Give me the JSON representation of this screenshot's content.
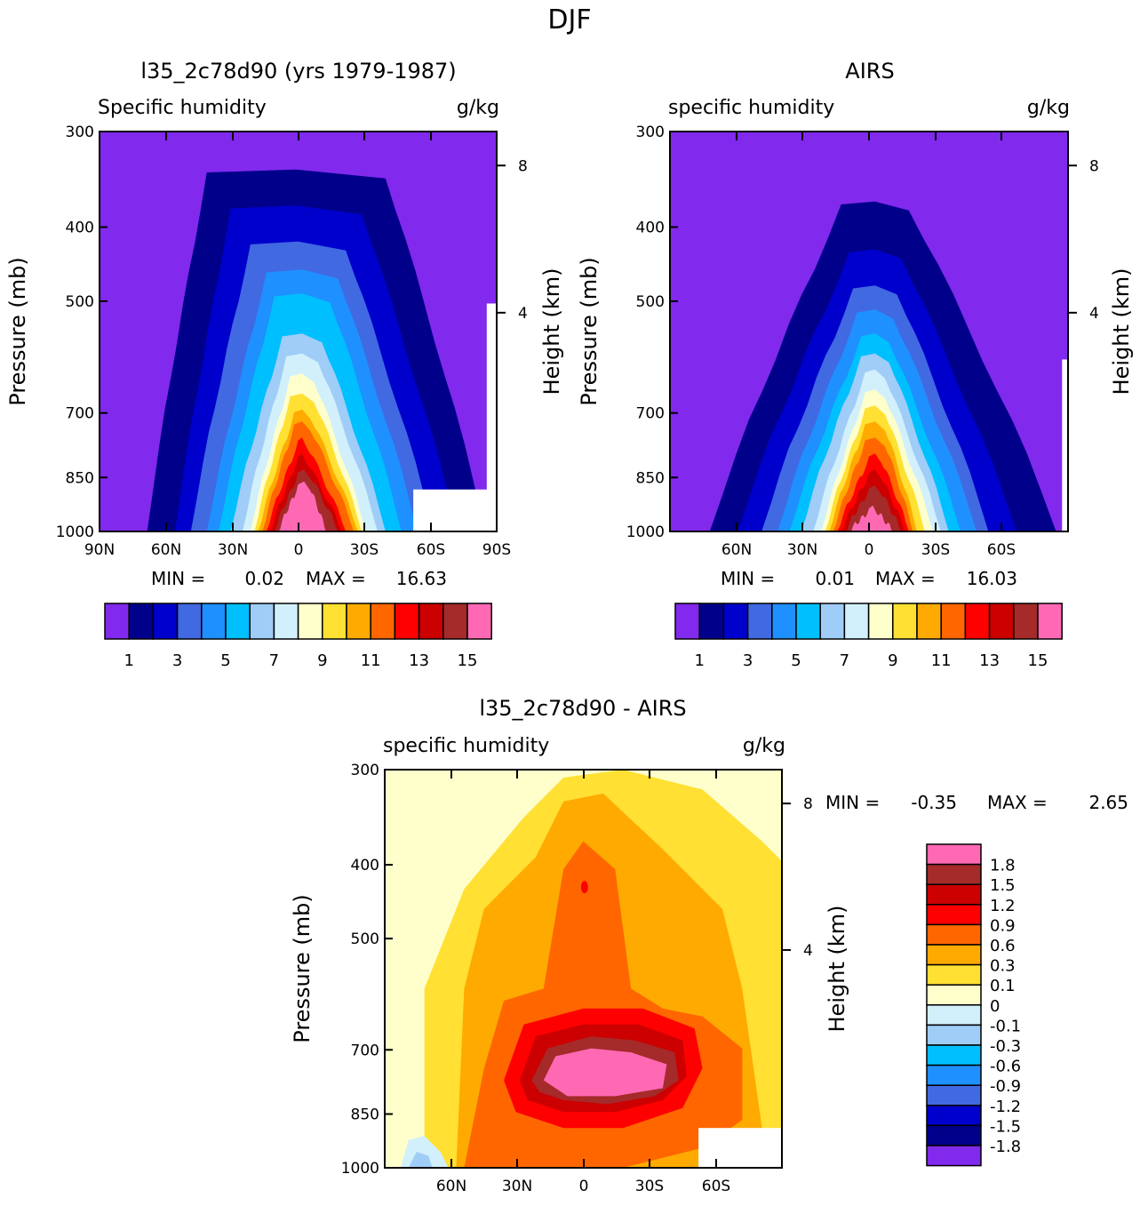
{
  "figure": {
    "title": "DJF"
  },
  "palettes": {
    "model": [
      "#8129ed",
      "#00008b",
      "#0000cd",
      "#4169e1",
      "#1e90ff",
      "#00bfff",
      "#9fcdf7",
      "#d2f0fb",
      "#ffffcc",
      "#ffe033",
      "#ffaa00",
      "#ff6600",
      "#ff0000",
      "#cc0000",
      "#a52a2a",
      "#ff69b4"
    ],
    "diff": [
      "#ff69b4",
      "#a52a2a",
      "#cc0000",
      "#ff0000",
      "#ff6600",
      "#ffaa00",
      "#ffe033",
      "#ffffcc",
      "#d2f0fb",
      "#9fcdf7",
      "#00bfff",
      "#1e90ff",
      "#4169e1",
      "#0000cd",
      "#00008b",
      "#8129ed"
    ]
  },
  "chart_data": [
    {
      "type": "heatmap",
      "title": "l35_2c78d90 (yrs 1979-1987)",
      "left_string": "Specific humidity",
      "right_string": "g/kg",
      "ylabel": "Pressure (mb)",
      "ylabel_right": "Height (km)",
      "yticks": [
        "300",
        "400",
        "500",
        "700",
        "850",
        "1000"
      ],
      "yticks_right": [
        "8",
        "4"
      ],
      "xticks": [
        "90N",
        "60N",
        "30N",
        "0",
        "30S",
        "60S",
        "90S"
      ],
      "x_range": [
        "90N",
        "90S"
      ],
      "y_range_mb": [
        1000,
        300
      ],
      "log_pressure": true,
      "stats": {
        "min_label": "MIN =",
        "min": "0.02",
        "max_label": "MAX =",
        "max": "16.63"
      },
      "colorbar": {
        "orientation": "horizontal",
        "labels": [
          "1",
          "3",
          "5",
          "7",
          "9",
          "11",
          "13",
          "15"
        ]
      }
    },
    {
      "type": "heatmap",
      "title": "AIRS",
      "left_string": "specific humidity",
      "right_string": "g/kg",
      "ylabel": "Pressure (mb)",
      "ylabel_right": "Height (km)",
      "yticks": [
        "300",
        "400",
        "500",
        "700",
        "850",
        "1000"
      ],
      "yticks_right": [
        "8",
        "4"
      ],
      "xticks": [
        "60N",
        "30N",
        "0",
        "30S",
        "60S"
      ],
      "y_range_mb": [
        1000,
        300
      ],
      "log_pressure": true,
      "stats": {
        "min_label": "MIN =",
        "min": "0.01",
        "max_label": "MAX =",
        "max": "16.03"
      },
      "colorbar": {
        "orientation": "horizontal",
        "labels": [
          "1",
          "3",
          "5",
          "7",
          "9",
          "11",
          "13",
          "15"
        ]
      }
    },
    {
      "type": "heatmap",
      "title": "l35_2c78d90 - AIRS",
      "left_string": "specific humidity",
      "right_string": "g/kg",
      "ylabel": "Pressure (mb)",
      "ylabel_right": "Height (km)",
      "yticks": [
        "300",
        "400",
        "500",
        "700",
        "850",
        "1000"
      ],
      "yticks_right": [
        "8",
        "4"
      ],
      "xticks": [
        "60N",
        "30N",
        "0",
        "30S",
        "60S"
      ],
      "y_range_mb": [
        1000,
        300
      ],
      "log_pressure": true,
      "stats": {
        "min_label": "MIN =",
        "min": "-0.35",
        "max_label": "MAX =",
        "max": "2.65"
      },
      "colorbar": {
        "orientation": "vertical",
        "labels": [
          "1.8",
          "1.5",
          "1.2",
          "0.9",
          "0.6",
          "0.3",
          "0.1",
          "0",
          "-0.1",
          "-0.3",
          "-0.6",
          "-0.9",
          "-1.2",
          "-1.5",
          "-1.8"
        ]
      }
    }
  ]
}
